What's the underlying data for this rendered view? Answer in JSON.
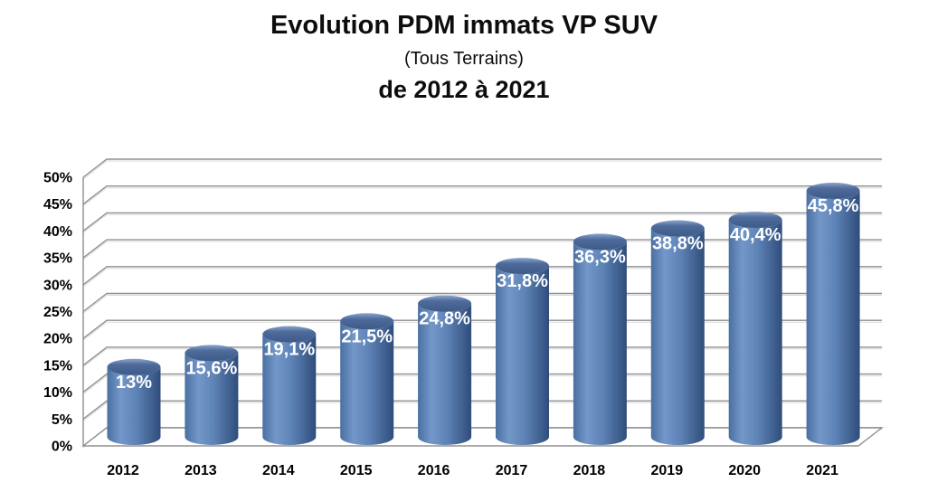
{
  "title": {
    "line1": "Evolution PDM immats VP SUV",
    "line2": "(Tous Terrains)",
    "line3": "de 2012 à 2021"
  },
  "chart_data": {
    "type": "bar",
    "style": "3d-cylinder",
    "title": "Evolution PDM immats VP SUV (Tous Terrains) de 2012 à 2021",
    "categories": [
      "2012",
      "2013",
      "2014",
      "2015",
      "2016",
      "2017",
      "2018",
      "2019",
      "2020",
      "2021"
    ],
    "values": [
      13,
      15.6,
      19.1,
      21.5,
      24.8,
      31.8,
      36.3,
      38.8,
      40.4,
      45.8
    ],
    "value_labels": [
      "13%",
      "15,6%",
      "19,1%",
      "21,5%",
      "24,8%",
      "31,8%",
      "36,3%",
      "38,8%",
      "40,4%",
      "45,8%"
    ],
    "xlabel": "",
    "ylabel": "",
    "ylim": [
      0,
      50
    ],
    "ytick_step": 5,
    "ytick_labels": [
      "0%",
      "5%",
      "10%",
      "15%",
      "20%",
      "25%",
      "30%",
      "35%",
      "40%",
      "45%",
      "50%"
    ],
    "grid": true,
    "legend": "none",
    "colors": {
      "background": "#ffffff",
      "bar_left": "#4a6fa1",
      "bar_highlight": "#7397c9",
      "bar_mid": "#5d82b5",
      "bar_right": "#2f4d7b",
      "bar_top_rim": "#8aa5cc",
      "bar_top_upper": "#4e6b9b",
      "bar_top": "#3d5a88",
      "grid": "#8f8f8f",
      "grid_shadow": "#d9d9d9",
      "value_label": "#ffffff",
      "axis_label": "#000000"
    }
  }
}
